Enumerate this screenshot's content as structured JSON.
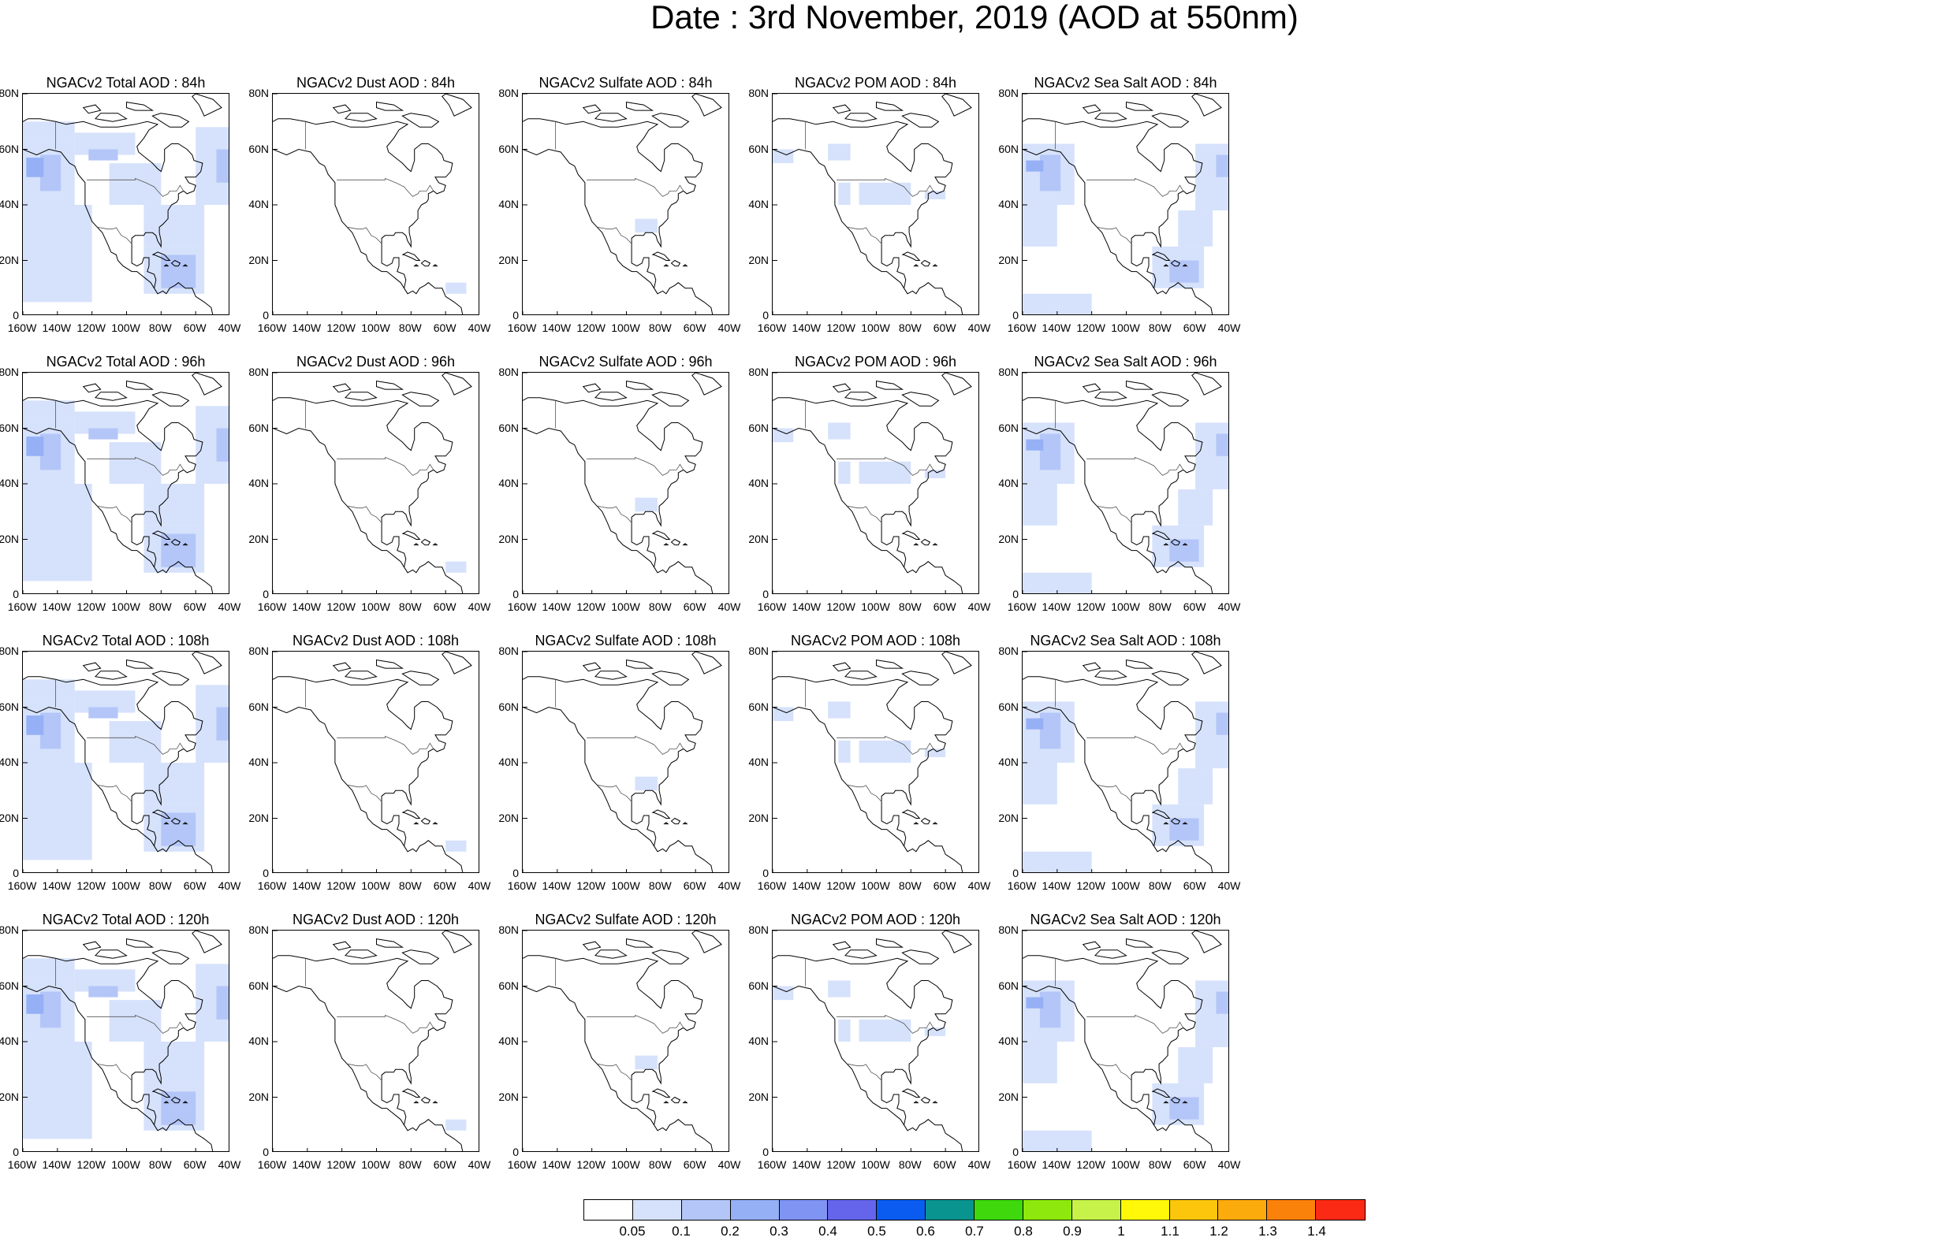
{
  "title": "Date : 3rd November, 2019 (AOD at 550nm)",
  "rows": [
    {
      "lead": "84h",
      "panels": [
        "NGACv2 Total AOD : 84h",
        "NGACv2 Dust AOD : 84h",
        "NGACv2 Sulfate AOD : 84h",
        "NGACv2 POM AOD : 84h",
        "NGACv2 Sea Salt AOD : 84h"
      ]
    },
    {
      "lead": "96h",
      "panels": [
        "NGACv2 Total AOD : 96h",
        "NGACv2 Dust AOD : 96h",
        "NGACv2 Sulfate AOD : 96h",
        "NGACv2 POM AOD : 96h",
        "NGACv2 Sea Salt AOD : 96h"
      ]
    },
    {
      "lead": "108h",
      "panels": [
        "NGACv2 Total AOD : 108h",
        "NGACv2 Dust AOD : 108h",
        "NGACv2 Sulfate AOD : 108h",
        "NGACv2 POM AOD : 108h",
        "NGACv2 Sea Salt AOD : 108h"
      ]
    },
    {
      "lead": "120h",
      "panels": [
        "NGACv2 Total AOD : 120h",
        "NGACv2 Dust AOD : 120h",
        "NGACv2 Sulfate AOD : 120h",
        "NGACv2 POM AOD : 120h",
        "NGACv2 Sea Salt  AOD : 120h"
      ]
    }
  ],
  "species": [
    "total",
    "dust",
    "sulfate",
    "pom",
    "seasalt"
  ],
  "lat_ticks": [
    "80N",
    "60N",
    "40N",
    "20N",
    "0"
  ],
  "lon_ticks": [
    "160W",
    "140W",
    "120W",
    "100W",
    "80W",
    "60W",
    "40W"
  ],
  "map_extent": {
    "lon": [
      -160,
      -40
    ],
    "lat": [
      0,
      80
    ]
  },
  "colorbar": {
    "colors": [
      "#ffffff",
      "#d6e2fb",
      "#b4c6f8",
      "#96b0f6",
      "#8094f3",
      "#6565ec",
      "#0a5cf0",
      "#0a948f",
      "#3ed80c",
      "#8ee80d",
      "#c6f24a",
      "#fff909",
      "#fbc60b",
      "#fbab0c",
      "#fb820a",
      "#fb2a15"
    ],
    "labels": [
      "0.05",
      "0.1",
      "0.2",
      "0.3",
      "0.4",
      "0.5",
      "0.6",
      "0.7",
      "0.8",
      "0.9",
      "1",
      "1.1",
      "1.2",
      "1.3",
      "1.4"
    ]
  }
}
